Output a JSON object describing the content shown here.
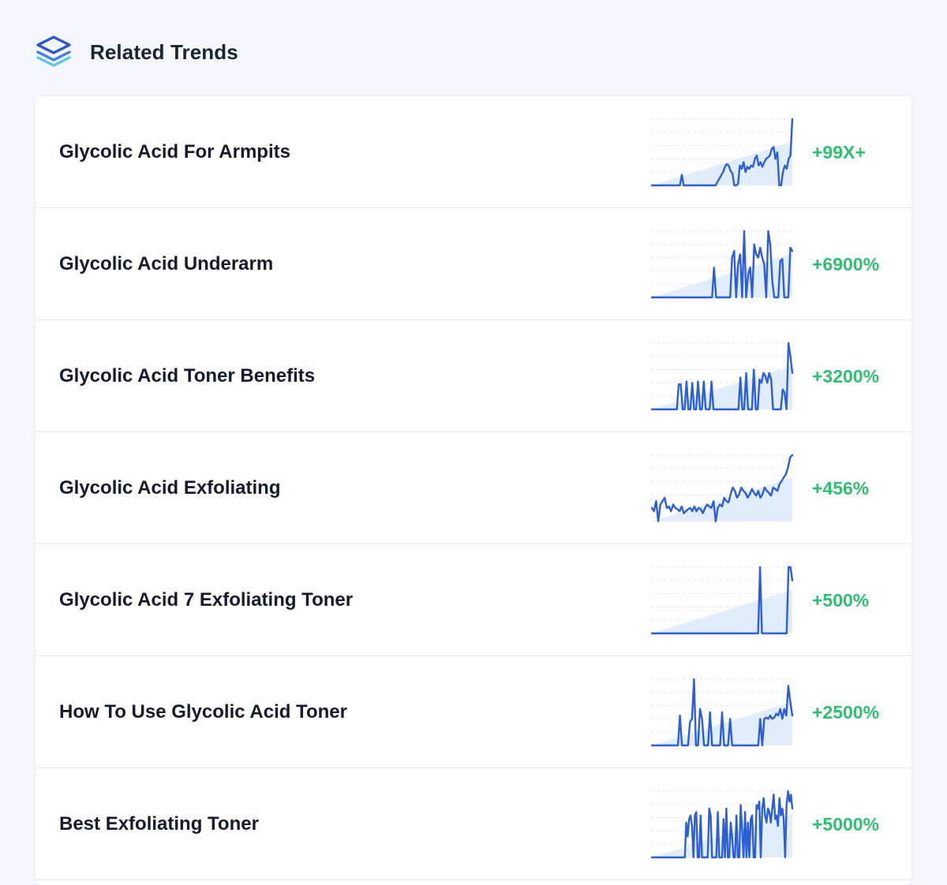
{
  "header": {
    "title": "Related Trends",
    "icon": "stacked-layers-icon"
  },
  "colors": {
    "background": "#f3f7fc",
    "card": "#ffffff",
    "line": "#2c5ed6",
    "area": "#dbe8fb",
    "growth": "#2fbf71",
    "text": "#141b2d"
  },
  "trends": [
    {
      "name": "Glycolic Acid For Armpits",
      "growth": "+99X+",
      "sparkline": [
        0,
        0,
        0,
        0,
        0,
        0,
        0,
        0,
        0,
        0,
        0,
        0,
        0,
        0,
        0,
        0,
        16,
        0,
        0,
        0,
        0,
        0,
        0,
        0,
        0,
        0,
        0,
        0,
        0,
        0,
        0,
        0,
        0,
        0,
        0,
        5,
        10,
        15,
        20,
        28,
        32,
        30,
        22,
        18,
        0,
        0,
        2,
        30,
        25,
        35,
        20,
        28,
        25,
        30,
        28,
        40,
        45,
        30,
        35,
        28,
        35,
        40,
        42,
        45,
        55,
        58,
        40,
        50,
        0,
        0,
        20,
        30,
        25,
        40,
        45,
        100
      ]
    },
    {
      "name": "Glycolic Acid Underarm",
      "growth": "+6900%",
      "sparkline": [
        0,
        0,
        0,
        0,
        0,
        0,
        0,
        0,
        0,
        0,
        0,
        0,
        0,
        0,
        0,
        0,
        0,
        0,
        0,
        0,
        0,
        0,
        0,
        0,
        0,
        0,
        0,
        0,
        0,
        0,
        0,
        45,
        0,
        0,
        0,
        0,
        0,
        0,
        0,
        0,
        60,
        70,
        0,
        50,
        65,
        0,
        100,
        0,
        35,
        45,
        0,
        80,
        65,
        60,
        75,
        60,
        50,
        0,
        100,
        80,
        25,
        0,
        0,
        0,
        55,
        58,
        0,
        0,
        0,
        75,
        70
      ]
    },
    {
      "name": "Glycolic Acid Toner Benefits",
      "growth": "+3200%",
      "sparkline": [
        0,
        0,
        0,
        0,
        0,
        0,
        0,
        0,
        0,
        0,
        0,
        0,
        0,
        0,
        38,
        38,
        0,
        0,
        42,
        0,
        0,
        40,
        0,
        0,
        42,
        0,
        0,
        42,
        0,
        0,
        0,
        42,
        0,
        0,
        0,
        0,
        0,
        0,
        0,
        0,
        0,
        0,
        0,
        0,
        0,
        0,
        48,
        0,
        0,
        55,
        0,
        0,
        0,
        60,
        0,
        0,
        45,
        40,
        55,
        50,
        40,
        55,
        45,
        0,
        0,
        0,
        0,
        0,
        30,
        25,
        0,
        100,
        80,
        55
      ]
    },
    {
      "name": "Glycolic Acid Exfoliating",
      "growth": "+456%",
      "sparkline": [
        20,
        15,
        30,
        0,
        25,
        30,
        35,
        20,
        22,
        15,
        25,
        20,
        18,
        15,
        22,
        12,
        15,
        18,
        20,
        15,
        22,
        15,
        20,
        18,
        12,
        20,
        25,
        22,
        20,
        30,
        0,
        20,
        25,
        22,
        35,
        30,
        28,
        40,
        50,
        45,
        35,
        40,
        50,
        45,
        42,
        35,
        40,
        48,
        42,
        38,
        45,
        35,
        40,
        50,
        45,
        42,
        38,
        50,
        48,
        45,
        55,
        60,
        65,
        70,
        80,
        95,
        98
      ]
    },
    {
      "name": "Glycolic Acid 7 Exfoliating Toner",
      "growth": "+500%",
      "sparkline": [
        0,
        0,
        0,
        0,
        0,
        0,
        0,
        0,
        0,
        0,
        0,
        0,
        0,
        0,
        0,
        0,
        0,
        0,
        0,
        0,
        0,
        0,
        0,
        0,
        0,
        0,
        0,
        0,
        0,
        0,
        0,
        0,
        0,
        0,
        0,
        0,
        0,
        0,
        0,
        0,
        0,
        0,
        0,
        0,
        0,
        0,
        0,
        0,
        0,
        0,
        0,
        0,
        0,
        0,
        0,
        0,
        0,
        100,
        0,
        0,
        0,
        0,
        0,
        0,
        0,
        0,
        0,
        0,
        0,
        0,
        0,
        0,
        100,
        100,
        80
      ]
    },
    {
      "name": "How To Use Glycolic Acid Toner",
      "growth": "+2500%",
      "sparkline": [
        0,
        0,
        0,
        0,
        0,
        0,
        0,
        0,
        0,
        0,
        0,
        0,
        0,
        0,
        45,
        0,
        0,
        0,
        0,
        35,
        40,
        100,
        0,
        0,
        55,
        40,
        0,
        0,
        0,
        50,
        0,
        0,
        0,
        0,
        0,
        50,
        0,
        0,
        0,
        40,
        0,
        0,
        0,
        0,
        0,
        0,
        0,
        0,
        0,
        0,
        0,
        0,
        0,
        0,
        40,
        0,
        40,
        42,
        40,
        45,
        40,
        42,
        48,
        45,
        55,
        40,
        55,
        45,
        90,
        65,
        45
      ]
    },
    {
      "name": "Best Exfoliating Toner",
      "growth": "+5000%",
      "sparkline": [
        0,
        0,
        0,
        0,
        0,
        0,
        0,
        0,
        0,
        0,
        0,
        0,
        0,
        0,
        0,
        0,
        0,
        0,
        0,
        0,
        0,
        0,
        0,
        0,
        50,
        30,
        55,
        60,
        45,
        0,
        60,
        65,
        0,
        0,
        60,
        0,
        0,
        0,
        0,
        0,
        70,
        60,
        0,
        0,
        0,
        0,
        65,
        0,
        0,
        0,
        55,
        0,
        70,
        0,
        0,
        50,
        30,
        0,
        0,
        60,
        0,
        0,
        75,
        40,
        0,
        65,
        0,
        50,
        0,
        55,
        60,
        0,
        0,
        75,
        70,
        80,
        0,
        70,
        85,
        60,
        50,
        70,
        65,
        50,
        70,
        90,
        55,
        60,
        45,
        85,
        60,
        70,
        55,
        0,
        75,
        95,
        80,
        90,
        70
      ]
    }
  ]
}
